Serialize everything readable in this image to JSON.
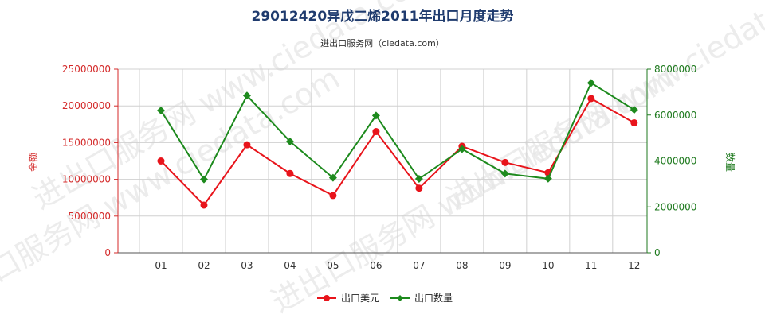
{
  "chart_data": {
    "type": "line",
    "title": "29012420异戊二烯2011年出口月度走势",
    "subtitle": "进出口服务网（ciedata.com）",
    "watermark": "进出口服务网 www.ciedata.com",
    "categories": [
      "01",
      "02",
      "03",
      "04",
      "05",
      "06",
      "07",
      "08",
      "09",
      "10",
      "11",
      "12"
    ],
    "ylabel_left": "金额",
    "ylabel_right": "数量",
    "y_left_ticks": [
      "0",
      "5000000",
      "10000000",
      "15000000",
      "20000000",
      "25000000"
    ],
    "y_right_ticks": [
      "0",
      "2000000",
      "4000000",
      "6000000",
      "8000000"
    ],
    "ylim_left": [
      0,
      25000000
    ],
    "ylim_right": [
      0,
      8000000
    ],
    "grid": true,
    "legend_position": "bottom-center",
    "series": [
      {
        "name": "出口美元",
        "axis": "left",
        "color": "#e8141b",
        "marker": "circle",
        "values": [
          12500000,
          6500000,
          14700000,
          10800000,
          7800000,
          16500000,
          8800000,
          14500000,
          12300000,
          10900000,
          21000000,
          17700000
        ]
      },
      {
        "name": "出口数量",
        "axis": "right",
        "color": "#1d8a1d",
        "marker": "diamond",
        "values": [
          6200000,
          3200000,
          6850000,
          4850000,
          3270000,
          5980000,
          3220000,
          4520000,
          3450000,
          3230000,
          7400000,
          6230000
        ]
      }
    ]
  }
}
